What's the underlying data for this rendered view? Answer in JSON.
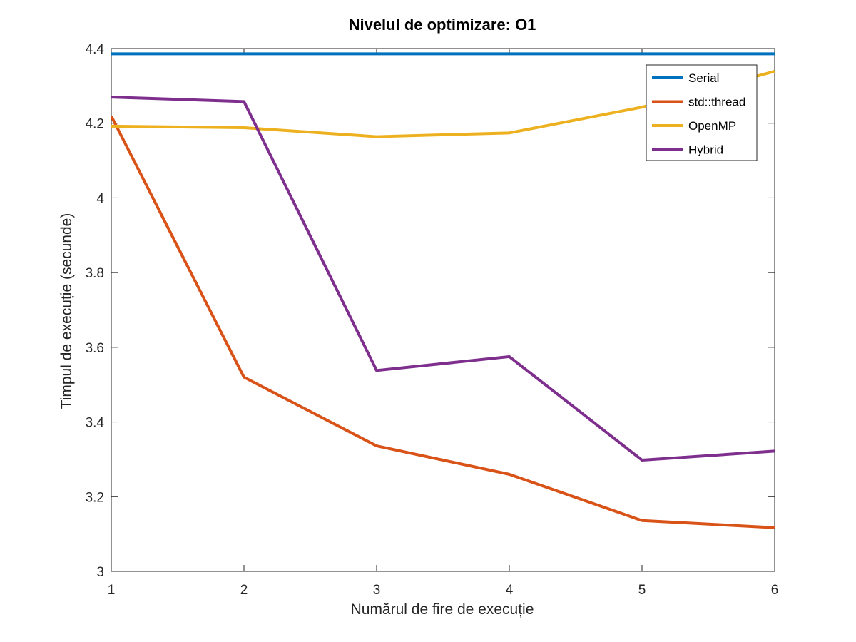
{
  "chart_data": {
    "type": "line",
    "title": "Nivelul de optimizare: O1",
    "xlabel": "Numărul de fire de execuție",
    "ylabel": "Timpul de execuție (secunde)",
    "x": [
      1,
      2,
      3,
      4,
      5,
      6
    ],
    "xlim": [
      1,
      6
    ],
    "ylim": [
      3,
      4.4
    ],
    "xticks": [
      "1",
      "2",
      "3",
      "4",
      "5",
      "6"
    ],
    "yticks": [
      "3",
      "3.2",
      "3.4",
      "3.6",
      "3.8",
      "4",
      "4.2",
      "4.4"
    ],
    "grid": false,
    "legend_position": "top-right",
    "series": [
      {
        "name": "Serial",
        "color": "#0072BD",
        "values": [
          4.386,
          4.386,
          4.386,
          4.386,
          4.386,
          4.386
        ]
      },
      {
        "name": "std::thread",
        "color": "#D95319",
        "values": [
          4.219,
          3.52,
          3.336,
          3.26,
          3.136,
          3.117
        ]
      },
      {
        "name": "OpenMP",
        "color": "#EDB120",
        "values": [
          4.192,
          4.188,
          4.164,
          4.174,
          4.243,
          4.339
        ]
      },
      {
        "name": "Hybrid",
        "color": "#7E2F8E",
        "values": [
          4.27,
          4.258,
          3.538,
          3.575,
          3.298,
          3.322
        ]
      }
    ]
  }
}
